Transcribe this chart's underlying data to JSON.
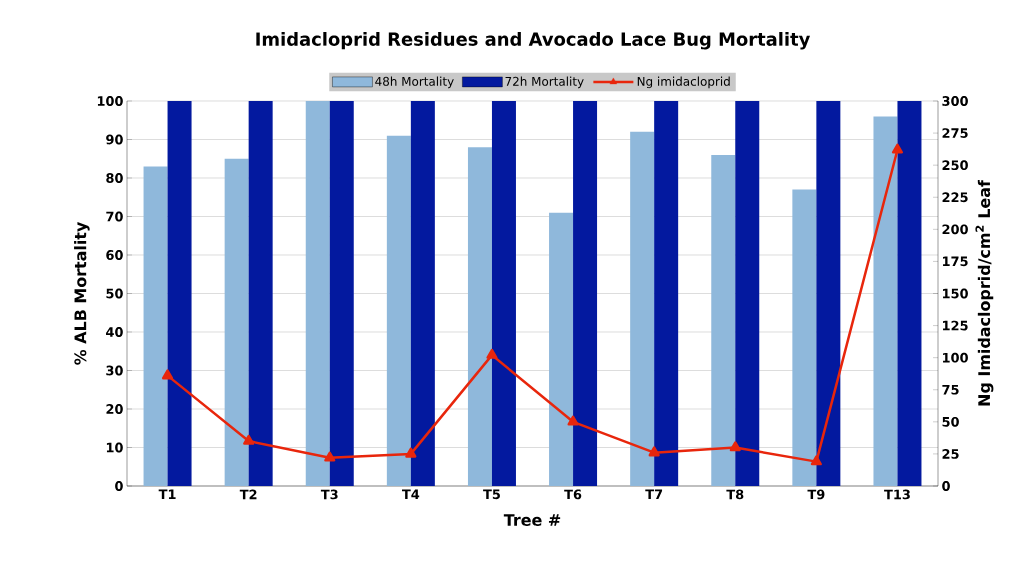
{
  "chart_data": {
    "type": "bar",
    "title": "Imidacloprid Residues and Avocado Lace Bug Mortality",
    "xlabel": "Tree #",
    "ylabel": "% ALB Mortality",
    "y2label": "Ng Imidacloprid/cm$^{2}$ Leaf",
    "categories": [
      "T1",
      "T2",
      "T3",
      "T4",
      "T5",
      "T6",
      "T7",
      "T8",
      "T9",
      "T13"
    ],
    "series": [
      {
        "name": "48h Mortality",
        "color": "#8fb8db",
        "values": [
          83,
          85,
          100,
          91,
          88,
          71,
          92,
          86,
          77,
          96
        ]
      },
      {
        "name": "72h Mortality",
        "color": "#03199f",
        "values": [
          100,
          100,
          100,
          100,
          100,
          100,
          100,
          100,
          100,
          100
        ]
      },
      {
        "name": "Ng imidacloprid",
        "type": "line",
        "axis": "y2",
        "color": "#e8260c",
        "marker": "triangle",
        "values": [
          86,
          35,
          22,
          25,
          102,
          50,
          26,
          30,
          19,
          262
        ]
      }
    ],
    "ylim": [
      0,
      100
    ],
    "yticks": [
      0,
      10,
      20,
      30,
      40,
      50,
      60,
      70,
      80,
      90,
      100
    ],
    "y2lim": [
      0,
      300
    ],
    "y2ticks": [
      0,
      25,
      50,
      75,
      100,
      125,
      150,
      175,
      200,
      225,
      250,
      275,
      300
    ],
    "grid": "y",
    "legend": "top"
  }
}
